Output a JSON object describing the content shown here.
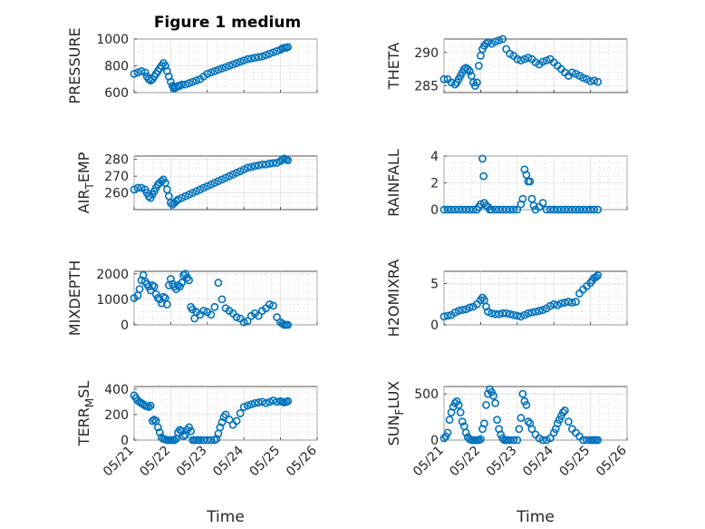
{
  "title": "Figure 1 medium",
  "colors": {
    "marker": "#0072BD",
    "axis": "#262626",
    "grid": "#d9d9d9"
  },
  "chart_data": [
    {
      "type": "scatter",
      "ylabel": "PRESSURE",
      "ylim": [
        600,
        1000
      ],
      "yticks": [
        600,
        800,
        1000
      ],
      "xlim": [
        0,
        5
      ],
      "xticks": [
        "05/21",
        "05/22",
        "05/23",
        "05/24",
        "05/25",
        "05/26"
      ],
      "xlabel": "",
      "x": [
        0.0,
        0.1,
        0.2,
        0.3,
        0.35,
        0.4,
        0.45,
        0.5,
        0.55,
        0.6,
        0.65,
        0.7,
        0.75,
        0.8,
        0.85,
        0.9,
        0.95,
        1.0,
        1.05,
        1.08,
        1.1,
        1.15,
        1.2,
        1.25,
        1.3,
        1.4,
        1.5,
        1.6,
        1.7,
        1.8,
        1.9,
        2.0,
        2.1,
        2.2,
        2.3,
        2.4,
        2.5,
        2.6,
        2.7,
        2.8,
        2.9,
        3.0,
        3.1,
        3.2,
        3.3,
        3.4,
        3.5,
        3.6,
        3.7,
        3.8,
        3.9,
        4.0,
        4.05,
        4.1,
        4.15,
        4.2
      ],
      "y": [
        740,
        750,
        760,
        750,
        720,
        700,
        690,
        700,
        720,
        740,
        760,
        780,
        800,
        820,
        800,
        760,
        720,
        680,
        650,
        640,
        630,
        640,
        650,
        650,
        660,
        660,
        670,
        680,
        690,
        700,
        720,
        740,
        750,
        760,
        770,
        780,
        790,
        800,
        810,
        820,
        830,
        840,
        850,
        855,
        860,
        865,
        870,
        880,
        890,
        900,
        910,
        920,
        930,
        935,
        935,
        940
      ]
    },
    {
      "type": "scatter",
      "ylabel": "THETA",
      "ylim": [
        284,
        292
      ],
      "yticks": [
        285,
        290
      ],
      "xlim": [
        0,
        5
      ],
      "xticks": [
        "05/21",
        "05/22",
        "05/23",
        "05/24",
        "05/25",
        "05/26"
      ],
      "xlabel": "",
      "x": [
        0.0,
        0.1,
        0.2,
        0.3,
        0.35,
        0.4,
        0.45,
        0.5,
        0.55,
        0.6,
        0.65,
        0.7,
        0.75,
        0.8,
        0.85,
        0.9,
        0.95,
        1.0,
        1.05,
        1.1,
        1.15,
        1.2,
        1.3,
        1.4,
        1.5,
        1.6,
        1.7,
        1.8,
        1.9,
        2.0,
        2.1,
        2.2,
        2.3,
        2.4,
        2.5,
        2.6,
        2.7,
        2.8,
        2.9,
        3.0,
        3.1,
        3.2,
        3.3,
        3.4,
        3.5,
        3.6,
        3.7,
        3.8,
        3.9,
        4.0,
        4.1,
        4.2
      ],
      "y": [
        286,
        286,
        285.5,
        285.2,
        285.5,
        286,
        286.5,
        287,
        287.5,
        287.7,
        287.5,
        287.2,
        286.5,
        285.5,
        285,
        285.5,
        288,
        289.5,
        290.5,
        291,
        291.3,
        291.5,
        291.3,
        291.6,
        291.8,
        292,
        290.5,
        289.8,
        289.5,
        289,
        288.8,
        289,
        289.2,
        289,
        288.5,
        288.2,
        288.6,
        288.8,
        289,
        288.5,
        288,
        287.5,
        287,
        286.5,
        287,
        286.8,
        286.5,
        286.2,
        286,
        285.7,
        285.8,
        285.6
      ]
    },
    {
      "type": "scatter",
      "ylabel": "AIR_TEMP",
      "ylim": [
        250,
        282
      ],
      "yticks": [
        260,
        270,
        280
      ],
      "xlim": [
        0,
        5
      ],
      "xticks": [
        "05/21",
        "05/22",
        "05/23",
        "05/24",
        "05/25",
        "05/26"
      ],
      "xlabel": "",
      "x": [
        0.0,
        0.1,
        0.2,
        0.3,
        0.35,
        0.4,
        0.45,
        0.5,
        0.55,
        0.6,
        0.65,
        0.7,
        0.75,
        0.8,
        0.85,
        0.9,
        0.95,
        1.0,
        1.05,
        1.1,
        1.15,
        1.2,
        1.3,
        1.4,
        1.5,
        1.6,
        1.7,
        1.8,
        1.9,
        2.0,
        2.1,
        2.2,
        2.3,
        2.4,
        2.5,
        2.6,
        2.7,
        2.8,
        2.9,
        3.0,
        3.1,
        3.2,
        3.3,
        3.4,
        3.5,
        3.6,
        3.7,
        3.8,
        3.9,
        4.0,
        4.05,
        4.1,
        4.15,
        4.2
      ],
      "y": [
        262,
        263,
        263,
        262,
        260,
        258,
        257,
        259,
        261,
        263,
        265,
        266,
        267,
        268,
        266,
        262,
        258,
        254,
        253,
        254,
        255,
        256,
        257,
        258,
        259,
        260,
        261,
        262,
        263,
        264,
        265,
        266,
        267,
        268,
        269,
        270,
        271,
        272,
        273,
        274,
        275,
        275.5,
        276,
        276.5,
        277,
        277,
        277.5,
        277.8,
        278,
        279,
        280,
        280.5,
        280,
        279.5
      ]
    },
    {
      "type": "scatter",
      "ylabel": "RAINFALL",
      "ylim": [
        0,
        4
      ],
      "yticks": [
        0,
        2,
        4
      ],
      "xlim": [
        0,
        5
      ],
      "xticks": [
        "05/21",
        "05/22",
        "05/23",
        "05/24",
        "05/25",
        "05/26"
      ],
      "xlabel": "",
      "x": [
        0.0,
        0.1,
        0.2,
        0.3,
        0.4,
        0.5,
        0.6,
        0.7,
        0.8,
        0.9,
        0.95,
        1.0,
        1.05,
        1.08,
        1.1,
        1.15,
        1.2,
        1.25,
        1.3,
        1.4,
        1.5,
        1.6,
        1.7,
        1.8,
        1.9,
        2.0,
        2.1,
        2.15,
        2.2,
        2.25,
        2.3,
        2.35,
        2.4,
        2.45,
        2.5,
        2.6,
        2.7,
        2.8,
        2.9,
        3.0,
        3.1,
        3.2,
        3.3,
        3.4,
        3.5,
        3.6,
        3.7,
        3.8,
        3.9,
        4.0,
        4.1,
        4.2
      ],
      "y": [
        0,
        0,
        0,
        0,
        0,
        0,
        0,
        0,
        0,
        0,
        0.2,
        0.4,
        3.8,
        2.5,
        0.5,
        0.3,
        0.2,
        0,
        0,
        0,
        0,
        0,
        0,
        0,
        0,
        0,
        0.4,
        0.8,
        3.0,
        2.6,
        2.1,
        2.1,
        0.8,
        0.3,
        0,
        0.2,
        0.5,
        0,
        0,
        0,
        0,
        0,
        0,
        0,
        0,
        0,
        0,
        0,
        0,
        0,
        0,
        0
      ]
    },
    {
      "type": "scatter",
      "ylabel": "MIXDEPTH",
      "ylim": [
        0,
        2100
      ],
      "yticks": [
        0,
        1000,
        2000
      ],
      "xlim": [
        0,
        5
      ],
      "xticks": [
        "05/21",
        "05/22",
        "05/23",
        "05/24",
        "05/25",
        "05/26"
      ],
      "xlabel": "",
      "x": [
        0.0,
        0.1,
        0.15,
        0.2,
        0.25,
        0.3,
        0.35,
        0.4,
        0.45,
        0.5,
        0.55,
        0.6,
        0.65,
        0.7,
        0.75,
        0.8,
        0.85,
        0.9,
        0.95,
        1.0,
        1.05,
        1.1,
        1.15,
        1.2,
        1.25,
        1.3,
        1.35,
        1.4,
        1.45,
        1.5,
        1.55,
        1.6,
        1.65,
        1.7,
        1.8,
        1.9,
        2.0,
        2.1,
        2.2,
        2.3,
        2.4,
        2.5,
        2.6,
        2.7,
        2.8,
        2.9,
        3.0,
        3.1,
        3.2,
        3.3,
        3.4,
        3.5,
        3.6,
        3.7,
        3.8,
        3.9,
        4.0,
        4.05,
        4.1,
        4.15,
        4.2
      ],
      "y": [
        1050,
        1150,
        1400,
        1750,
        1950,
        1700,
        1600,
        1500,
        1350,
        1550,
        1500,
        1200,
        1050,
        1000,
        850,
        1100,
        1050,
        800,
        1550,
        1800,
        1600,
        1500,
        1400,
        1550,
        1500,
        1650,
        1950,
        2000,
        1850,
        1750,
        700,
        600,
        250,
        500,
        400,
        550,
        500,
        400,
        700,
        1650,
        1000,
        650,
        550,
        450,
        300,
        250,
        100,
        150,
        350,
        450,
        350,
        550,
        650,
        800,
        750,
        300,
        100,
        50,
        0,
        -20,
        -20
      ]
    },
    {
      "type": "scatter",
      "ylabel": "H2OMIXRA",
      "ylim": [
        0,
        6.5
      ],
      "yticks": [
        0,
        5
      ],
      "xlim": [
        0,
        5
      ],
      "xticks": [
        "05/21",
        "05/22",
        "05/23",
        "05/24",
        "05/25",
        "05/26"
      ],
      "xlabel": "",
      "x": [
        0.0,
        0.1,
        0.2,
        0.3,
        0.4,
        0.5,
        0.6,
        0.7,
        0.8,
        0.9,
        1.0,
        1.05,
        1.1,
        1.15,
        1.2,
        1.3,
        1.4,
        1.5,
        1.6,
        1.7,
        1.8,
        1.9,
        2.0,
        2.1,
        2.2,
        2.3,
        2.4,
        2.5,
        2.6,
        2.7,
        2.8,
        2.9,
        3.0,
        3.1,
        3.2,
        3.3,
        3.4,
        3.5,
        3.6,
        3.7,
        3.8,
        3.9,
        4.0,
        4.05,
        4.1,
        4.15,
        4.2
      ],
      "y": [
        1.0,
        1.1,
        1.2,
        1.5,
        1.7,
        1.8,
        1.9,
        2.1,
        2.2,
        2.5,
        3.0,
        3.3,
        3.0,
        2.2,
        1.6,
        1.4,
        1.3,
        1.3,
        1.4,
        1.4,
        1.3,
        1.2,
        1.1,
        1.0,
        1.2,
        1.4,
        1.5,
        1.6,
        1.7,
        1.8,
        2.0,
        2.3,
        2.5,
        2.4,
        2.6,
        2.7,
        2.8,
        2.7,
        2.8,
        3.8,
        4.3,
        4.7,
        5.1,
        5.4,
        5.7,
        5.8,
        6.0
      ]
    },
    {
      "type": "scatter",
      "ylabel": "TERR_MSL",
      "ylim": [
        0,
        420
      ],
      "yticks": [
        0,
        200,
        400
      ],
      "xlim": [
        0,
        5
      ],
      "xticks": [
        "05/21",
        "05/22",
        "05/23",
        "05/24",
        "05/25",
        "05/26"
      ],
      "xlabel": "Time",
      "x": [
        0.0,
        0.05,
        0.1,
        0.15,
        0.2,
        0.25,
        0.3,
        0.35,
        0.4,
        0.45,
        0.5,
        0.55,
        0.6,
        0.65,
        0.7,
        0.75,
        0.8,
        0.85,
        0.9,
        0.95,
        1.0,
        1.05,
        1.1,
        1.15,
        1.2,
        1.25,
        1.3,
        1.35,
        1.4,
        1.45,
        1.5,
        1.55,
        1.6,
        1.65,
        1.7,
        1.75,
        1.8,
        1.9,
        2.0,
        2.1,
        2.2,
        2.25,
        2.3,
        2.35,
        2.4,
        2.45,
        2.5,
        2.6,
        2.7,
        2.8,
        2.9,
        3.0,
        3.1,
        3.2,
        3.3,
        3.4,
        3.5,
        3.6,
        3.7,
        3.8,
        3.9,
        4.0,
        4.05,
        4.1,
        4.15,
        4.2
      ],
      "y": [
        350,
        330,
        310,
        300,
        290,
        280,
        270,
        265,
        260,
        270,
        150,
        160,
        150,
        100,
        60,
        20,
        10,
        5,
        0,
        0,
        0,
        0,
        0,
        10,
        60,
        80,
        70,
        30,
        40,
        80,
        100,
        70,
        0,
        0,
        0,
        0,
        0,
        0,
        0,
        0,
        0,
        10,
        50,
        100,
        140,
        180,
        200,
        160,
        120,
        150,
        210,
        260,
        270,
        280,
        290,
        295,
        300,
        290,
        300,
        310,
        300,
        305,
        300,
        295,
        300,
        305
      ]
    },
    {
      "type": "scatter",
      "ylabel": "SUN_FLUX",
      "ylim": [
        0,
        580
      ],
      "yticks": [
        0,
        500
      ],
      "xlim": [
        0,
        5
      ],
      "xticks": [
        "05/21",
        "05/22",
        "05/23",
        "05/24",
        "05/25",
        "05/26"
      ],
      "xlabel": "Time",
      "x": [
        0.0,
        0.05,
        0.1,
        0.15,
        0.2,
        0.25,
        0.3,
        0.35,
        0.4,
        0.45,
        0.5,
        0.55,
        0.6,
        0.65,
        0.7,
        0.75,
        0.8,
        0.85,
        0.9,
        0.95,
        1.0,
        1.05,
        1.1,
        1.15,
        1.2,
        1.25,
        1.3,
        1.35,
        1.4,
        1.45,
        1.5,
        1.55,
        1.6,
        1.65,
        1.7,
        1.75,
        1.8,
        1.9,
        2.0,
        2.05,
        2.1,
        2.15,
        2.2,
        2.25,
        2.3,
        2.35,
        2.4,
        2.5,
        2.6,
        2.7,
        2.8,
        2.9,
        3.0,
        3.05,
        3.1,
        3.15,
        3.2,
        3.25,
        3.3,
        3.4,
        3.5,
        3.6,
        3.7,
        3.8,
        3.9,
        4.0,
        4.05,
        4.1,
        4.15,
        4.2
      ],
      "y": [
        20,
        40,
        80,
        220,
        300,
        360,
        400,
        420,
        380,
        300,
        200,
        150,
        80,
        30,
        10,
        0,
        0,
        0,
        0,
        0,
        10,
        120,
        180,
        380,
        500,
        550,
        520,
        480,
        400,
        220,
        120,
        60,
        20,
        0,
        0,
        0,
        0,
        0,
        0,
        120,
        240,
        500,
        420,
        380,
        200,
        180,
        120,
        60,
        20,
        0,
        0,
        20,
        80,
        120,
        180,
        220,
        260,
        300,
        320,
        200,
        120,
        80,
        40,
        0,
        0,
        0,
        0,
        0,
        0,
        0
      ]
    }
  ]
}
